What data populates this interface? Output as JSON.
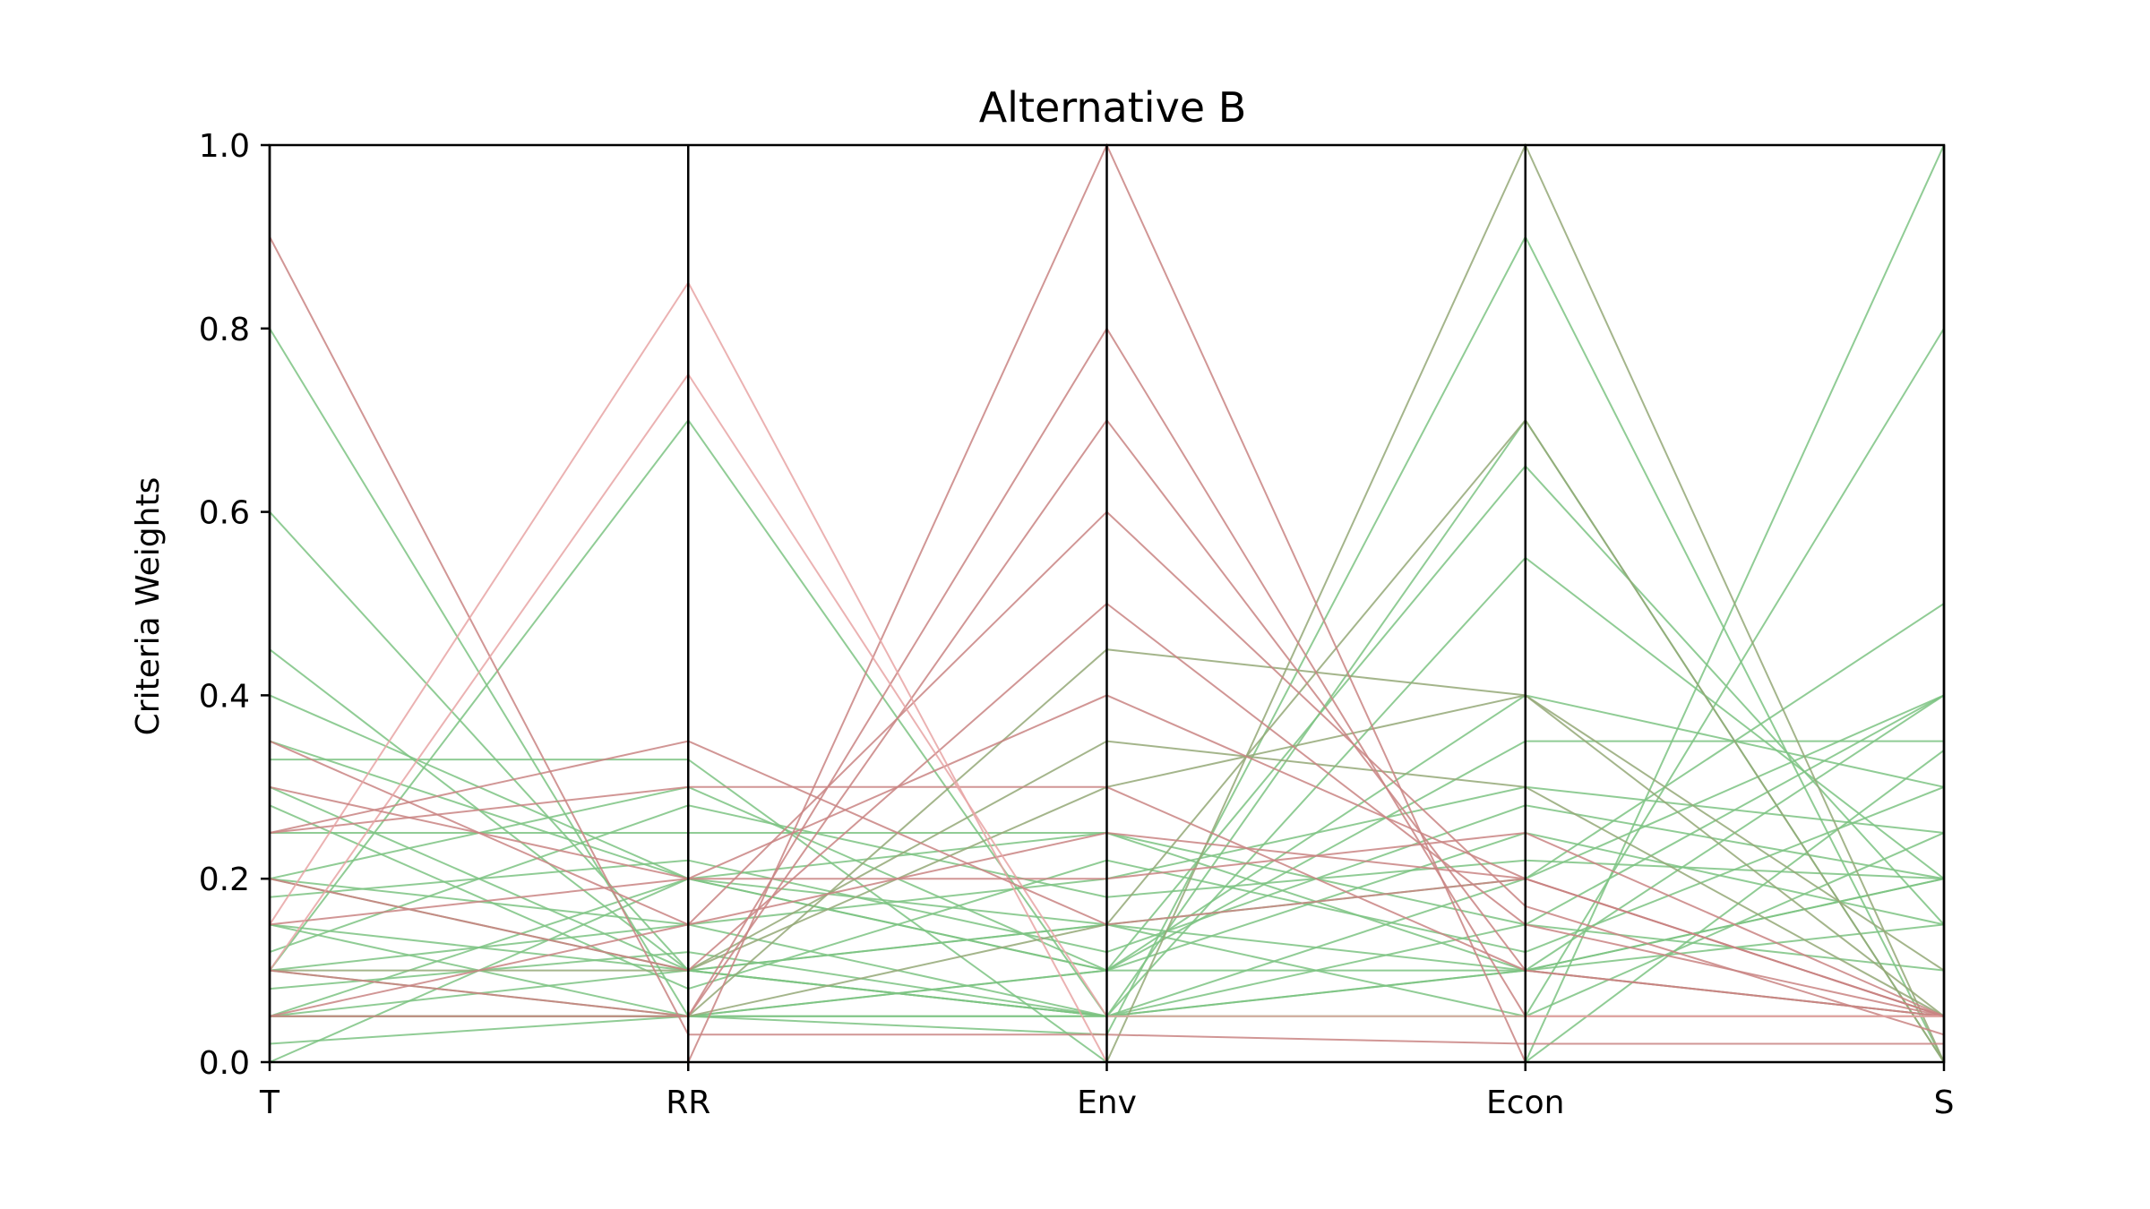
{
  "chart_data": {
    "type": "parallel-coordinates",
    "title": "Alternative B",
    "ylabel": "Criteria Weights",
    "xlabel": "",
    "axes": [
      "T",
      "RR",
      "Env",
      "Econ",
      "S"
    ],
    "ylim": [
      0.0,
      1.0
    ],
    "yticks": [
      "0.0",
      "0.2",
      "0.4",
      "0.6",
      "0.8",
      "1.0"
    ],
    "grid": false,
    "legend": "none",
    "series": [
      {
        "color": "#7dc383",
        "values": [
          0.35,
          0.2,
          0.15,
          0.1,
          0.2
        ]
      },
      {
        "color": "#7dc383",
        "values": [
          0.2,
          0.3,
          0.1,
          0.25,
          0.15
        ]
      },
      {
        "color": "#7dc383",
        "values": [
          0.1,
          0.15,
          0.2,
          0.3,
          0.25
        ]
      },
      {
        "color": "#7dc383",
        "values": [
          0.05,
          0.1,
          0.15,
          0.2,
          0.5
        ]
      },
      {
        "color": "#7dc383",
        "values": [
          0.25,
          0.25,
          0.25,
          0.15,
          0.1
        ]
      },
      {
        "color": "#7dc383",
        "values": [
          0.15,
          0.05,
          0.1,
          0.4,
          0.3
        ]
      },
      {
        "color": "#7dc383",
        "values": [
          0.3,
          0.1,
          0.05,
          0.15,
          0.4
        ]
      },
      {
        "color": "#7dc383",
        "values": [
          0.4,
          0.2,
          0.1,
          0.1,
          0.2
        ]
      },
      {
        "color": "#7dc383",
        "values": [
          0.12,
          0.28,
          0.18,
          0.22,
          0.2
        ]
      },
      {
        "color": "#7dc383",
        "values": [
          0.08,
          0.12,
          0.05,
          0.55,
          0.2
        ]
      },
      {
        "color": "#7dc383",
        "values": [
          0.02,
          0.05,
          0.03,
          0.9,
          0.0
        ]
      },
      {
        "color": "#7dc383",
        "values": [
          0.0,
          0.0,
          0.0,
          0.0,
          1.0
        ]
      },
      {
        "color": "#7dc383",
        "values": [
          0.05,
          0.05,
          0.05,
          0.05,
          0.8
        ]
      },
      {
        "color": "#7dc383",
        "values": [
          0.8,
          0.05,
          0.05,
          0.05,
          0.05
        ]
      },
      {
        "color": "#7dc383",
        "values": [
          0.1,
          0.7,
          0.05,
          0.1,
          0.05
        ]
      },
      {
        "color": "#7dc383",
        "values": [
          0.05,
          0.05,
          0.1,
          0.65,
          0.15
        ]
      },
      {
        "color": "#7dc383",
        "values": [
          0.2,
          0.15,
          0.05,
          0.2,
          0.4
        ]
      },
      {
        "color": "#7dc383",
        "values": [
          0.45,
          0.1,
          0.15,
          0.05,
          0.25
        ]
      },
      {
        "color": "#7dc383",
        "values": [
          0.18,
          0.22,
          0.12,
          0.28,
          0.2
        ]
      },
      {
        "color": "#7dc383",
        "values": [
          0.28,
          0.08,
          0.22,
          0.12,
          0.3
        ]
      },
      {
        "color": "#7dc383",
        "values": [
          0.0,
          0.2,
          0.1,
          0.35,
          0.35
        ]
      },
      {
        "color": "#7dc383",
        "values": [
          0.33,
          0.33,
          0.0,
          0.0,
          0.34
        ]
      },
      {
        "color": "#7dc383",
        "values": [
          0.6,
          0.1,
          0.05,
          0.1,
          0.15
        ]
      },
      {
        "color": "#7dc383",
        "values": [
          0.15,
          0.1,
          0.05,
          0.7,
          0.0
        ]
      },
      {
        "color": "#7dc383",
        "values": [
          0.05,
          0.2,
          0.25,
          0.1,
          0.4
        ]
      },
      {
        "color": "#94a877",
        "values": [
          0.1,
          0.1,
          0.3,
          0.4,
          0.1
        ]
      },
      {
        "color": "#94a877",
        "values": [
          0.05,
          0.05,
          0.45,
          0.4,
          0.05
        ]
      },
      {
        "color": "#94a877",
        "values": [
          0.2,
          0.1,
          0.35,
          0.3,
          0.05
        ]
      },
      {
        "color": "#94a877",
        "values": [
          0.0,
          0.0,
          0.0,
          1.0,
          0.0
        ]
      },
      {
        "color": "#94a877",
        "values": [
          0.1,
          0.05,
          0.15,
          0.7,
          0.0
        ]
      },
      {
        "color": "#c98482",
        "values": [
          0.05,
          0.05,
          0.8,
          0.05,
          0.05
        ]
      },
      {
        "color": "#c98482",
        "values": [
          0.0,
          0.0,
          1.0,
          0.0,
          0.0
        ]
      },
      {
        "color": "#c98482",
        "values": [
          0.1,
          0.05,
          0.7,
          0.1,
          0.05
        ]
      },
      {
        "color": "#c98482",
        "values": [
          0.2,
          0.1,
          0.5,
          0.15,
          0.05
        ]
      },
      {
        "color": "#c98482",
        "values": [
          0.25,
          0.3,
          0.3,
          0.1,
          0.05
        ]
      },
      {
        "color": "#c98482",
        "values": [
          0.35,
          0.15,
          0.25,
          0.2,
          0.05
        ]
      },
      {
        "color": "#c98482",
        "values": [
          0.15,
          0.2,
          0.4,
          0.2,
          0.05
        ]
      },
      {
        "color": "#c98482",
        "values": [
          0.05,
          0.15,
          0.6,
          0.17,
          0.03
        ]
      },
      {
        "color": "#c98482",
        "values": [
          0.9,
          0.03,
          0.03,
          0.02,
          0.02
        ]
      },
      {
        "color": "#e8a5a5",
        "values": [
          0.15,
          0.85,
          0.0,
          0.0,
          0.0
        ]
      },
      {
        "color": "#e8a5a5",
        "values": [
          0.1,
          0.75,
          0.05,
          0.05,
          0.05
        ]
      },
      {
        "color": "#c98482",
        "values": [
          0.3,
          0.2,
          0.2,
          0.25,
          0.05
        ]
      },
      {
        "color": "#c98482",
        "values": [
          0.25,
          0.35,
          0.15,
          0.2,
          0.05
        ]
      }
    ]
  }
}
